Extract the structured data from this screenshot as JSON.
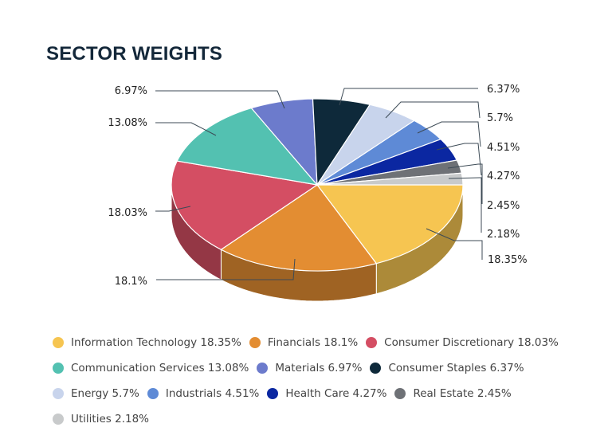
{
  "title": "SECTOR WEIGHTS",
  "chart_data": {
    "type": "pie",
    "title": "SECTOR WEIGHTS",
    "style": "3d",
    "legend_position": "bottom",
    "categories": [
      "Information Technology",
      "Financials",
      "Consumer Discretionary",
      "Communication Services",
      "Materials",
      "Consumer Staples",
      "Energy",
      "Industrials",
      "Health Care",
      "Real Estate",
      "Utilities"
    ],
    "values": [
      18.35,
      18.1,
      18.03,
      13.08,
      6.97,
      6.37,
      5.7,
      4.51,
      4.27,
      2.45,
      2.18
    ],
    "colors": [
      "#f6c551",
      "#e38d32",
      "#d44e63",
      "#53c1b1",
      "#6c7bcc",
      "#0e293a",
      "#c8d4ec",
      "#5e8ad6",
      "#0b27a1",
      "#6e7176",
      "#c8cacb"
    ],
    "labels": [
      "18.35%",
      "18.1%",
      "18.03%",
      "13.08%",
      "6.97%",
      "6.37%",
      "5.7%",
      "4.51%",
      "4.27%",
      "2.45%",
      "2.18%"
    ]
  },
  "legend": [
    {
      "label": "Information Technology 18.35%",
      "color": "#f6c551"
    },
    {
      "label": "Financials 18.1%",
      "color": "#e38d32"
    },
    {
      "label": "Consumer Discretionary 18.03%",
      "color": "#d44e63"
    },
    {
      "label": "Communication Services 13.08%",
      "color": "#53c1b1"
    },
    {
      "label": "Materials 6.97%",
      "color": "#6c7bcc"
    },
    {
      "label": "Consumer Staples 6.37%",
      "color": "#0e293a"
    },
    {
      "label": "Energy 5.7%",
      "color": "#c8d4ec"
    },
    {
      "label": "Industrials 4.51%",
      "color": "#5e8ad6"
    },
    {
      "label": "Health Care 4.27%",
      "color": "#0b27a1"
    },
    {
      "label": "Real Estate 2.45%",
      "color": "#6e7176"
    },
    {
      "label": "Utilities 2.18%",
      "color": "#c8cacb"
    }
  ]
}
